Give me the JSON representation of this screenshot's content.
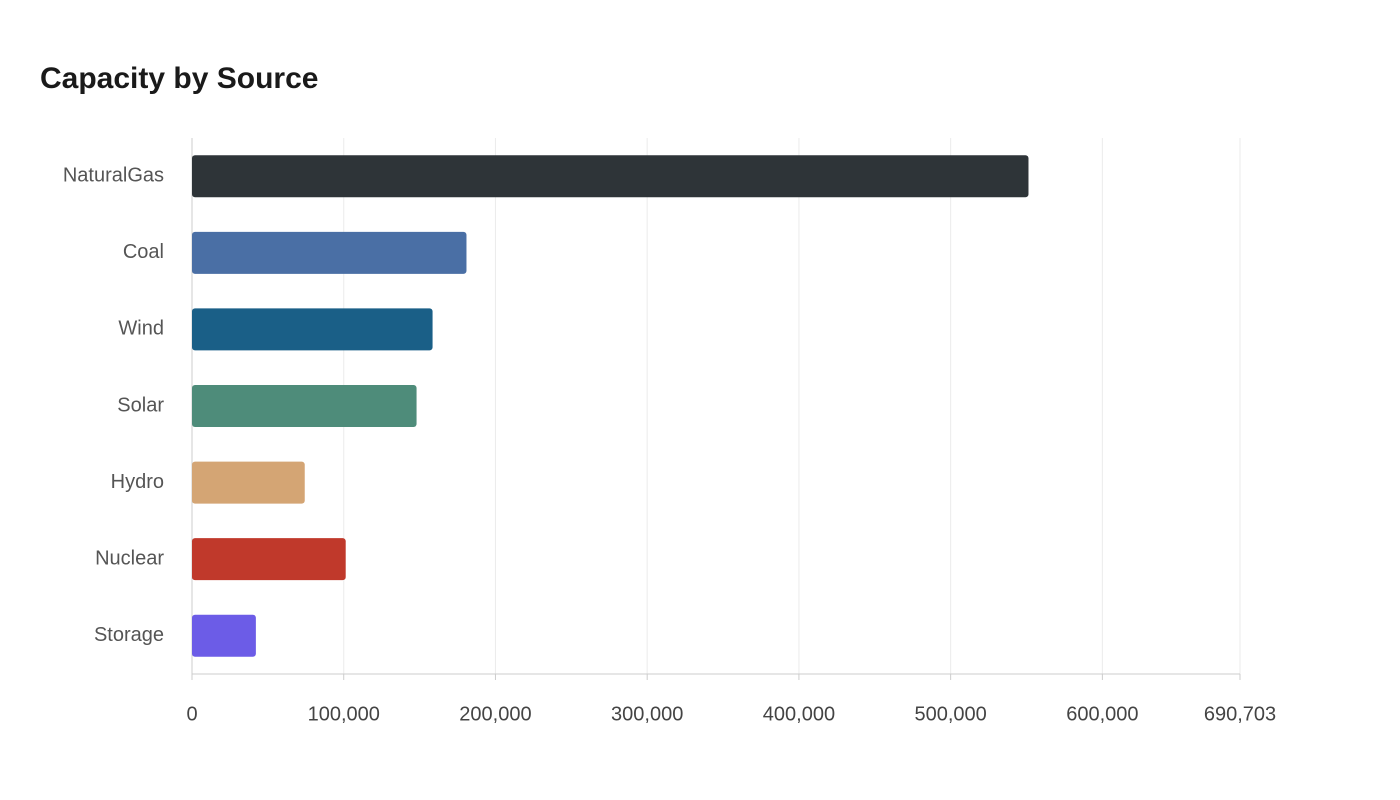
{
  "chart_data": {
    "type": "hbar",
    "title": "Capacity by Source",
    "categories": [
      "NaturalGas",
      "Coal",
      "Wind",
      "Solar",
      "Hydro",
      "Nuclear",
      "Storage"
    ],
    "values": [
      551300,
      180900,
      158550,
      148000,
      74300,
      101300,
      42100
    ],
    "colors": [
      "#2e3438",
      "#4a6fa5",
      "#1a5f87",
      "#4e8c7a",
      "#d4a574",
      "#c0392b",
      "#6c5ce7"
    ],
    "xlim": [
      0,
      690703
    ],
    "xticks": [
      0,
      {
        "value": 100000,
        "label": "100,000"
      },
      {
        "value": 200000,
        "label": "200,000"
      },
      {
        "value": 300000,
        "label": "300,000"
      },
      {
        "value": 400000,
        "label": "400,000"
      },
      {
        "value": 500000,
        "label": "500,000"
      },
      {
        "value": 600000,
        "label": "600,000"
      },
      {
        "value": 690703,
        "label": "690,703"
      }
    ],
    "grid": true
  }
}
